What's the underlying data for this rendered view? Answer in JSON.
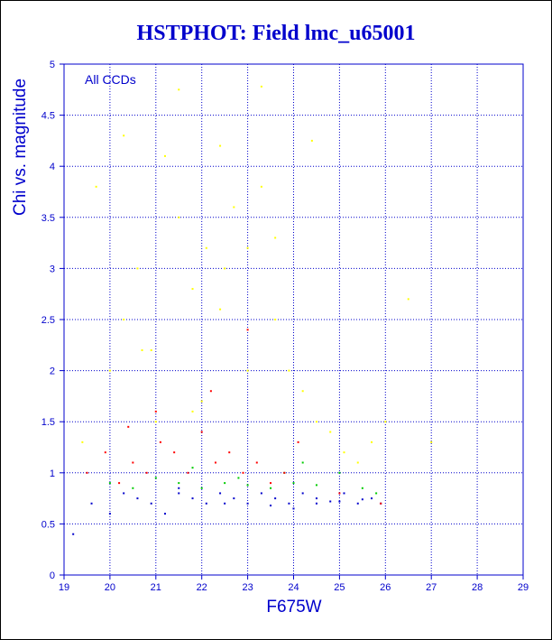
{
  "chart_data": {
    "type": "scatter",
    "title": "HSTPHOT: Field lmc_u65001",
    "xlabel": "F675W",
    "ylabel": "Chi vs. magnitude",
    "annotation": "All CCDs",
    "xlim": [
      19,
      29
    ],
    "ylim": [
      0,
      5
    ],
    "xticks": [
      "19",
      "20",
      "21",
      "22",
      "23",
      "24",
      "25",
      "26",
      "27",
      "28",
      "29"
    ],
    "yticks": [
      "0",
      "0.5",
      "1",
      "1.5",
      "2",
      "2.5",
      "3",
      "3.5",
      "4",
      "4.5",
      "5"
    ],
    "grid": true,
    "axis_color": "#0000cc",
    "series_colors": [
      "#0000cc",
      "#00cc00",
      "#ff0000",
      "#ffff00"
    ],
    "series": [
      {
        "color": "#0000cc",
        "x": [
          19.2,
          19.6,
          20.0,
          20.3,
          20.6,
          20.9,
          21.2,
          21.5,
          21.8,
          22.1,
          22.4,
          22.7,
          23.0,
          23.3,
          23.6,
          23.9,
          24.2,
          24.5,
          24.8,
          25.1,
          25.4,
          25.7,
          25.9,
          24.0,
          24.5,
          25.0,
          25.5,
          23.5,
          22.5,
          21.5
        ],
        "y": [
          0.4,
          0.7,
          0.6,
          0.8,
          0.75,
          0.7,
          0.6,
          0.8,
          0.75,
          0.7,
          0.8,
          0.75,
          0.7,
          0.8,
          0.75,
          0.7,
          0.8,
          0.75,
          0.72,
          0.8,
          0.7,
          0.75,
          0.7,
          0.65,
          0.7,
          0.72,
          0.74,
          0.68,
          0.7,
          0.85
        ]
      },
      {
        "color": "#00cc00",
        "x": [
          20.0,
          20.5,
          21.0,
          21.5,
          22.0,
          22.5,
          23.0,
          23.5,
          24.0,
          24.5,
          25.0,
          25.5,
          25.8,
          24.2,
          23.8,
          22.8,
          21.8
        ],
        "y": [
          0.9,
          0.85,
          0.95,
          0.9,
          0.85,
          0.9,
          0.88,
          0.85,
          0.9,
          0.88,
          1.0,
          0.85,
          0.8,
          1.1,
          1.0,
          0.95,
          1.05
        ]
      },
      {
        "color": "#ff0000",
        "x": [
          19.5,
          19.9,
          20.2,
          20.5,
          20.8,
          21.1,
          21.4,
          21.7,
          22.0,
          22.3,
          22.6,
          22.9,
          23.2,
          23.5,
          23.8,
          24.1,
          25.0,
          25.9,
          21.0,
          22.2,
          23.0,
          20.4
        ],
        "y": [
          1.0,
          1.2,
          0.9,
          1.1,
          1.0,
          1.3,
          1.2,
          1.0,
          1.4,
          1.1,
          1.2,
          1.0,
          1.1,
          0.9,
          1.0,
          1.3,
          0.8,
          0.7,
          1.6,
          1.8,
          2.4,
          1.45
        ]
      },
      {
        "color": "#ffff00",
        "x": [
          19.4,
          19.7,
          20.0,
          20.3,
          20.6,
          20.9,
          21.2,
          21.5,
          21.8,
          22.1,
          22.4,
          22.7,
          23.0,
          23.3,
          23.6,
          23.9,
          24.2,
          24.5,
          24.8,
          25.1,
          25.4,
          25.7,
          26.0,
          26.5,
          27.0,
          21.5,
          22.5,
          23.3,
          20.3,
          21.0,
          21.8,
          22.4,
          23.0,
          24.4,
          22.0,
          23.6,
          20.7
        ],
        "y": [
          1.3,
          3.8,
          2.0,
          2.5,
          3.0,
          2.2,
          4.1,
          3.5,
          2.8,
          3.2,
          4.2,
          3.6,
          2.0,
          3.8,
          2.5,
          2.0,
          1.8,
          1.5,
          1.4,
          1.2,
          1.1,
          1.3,
          1.5,
          2.7,
          1.3,
          4.75,
          3.0,
          4.78,
          4.3,
          1.5,
          1.6,
          2.6,
          3.2,
          4.25,
          1.7,
          3.3,
          2.2
        ]
      }
    ]
  }
}
